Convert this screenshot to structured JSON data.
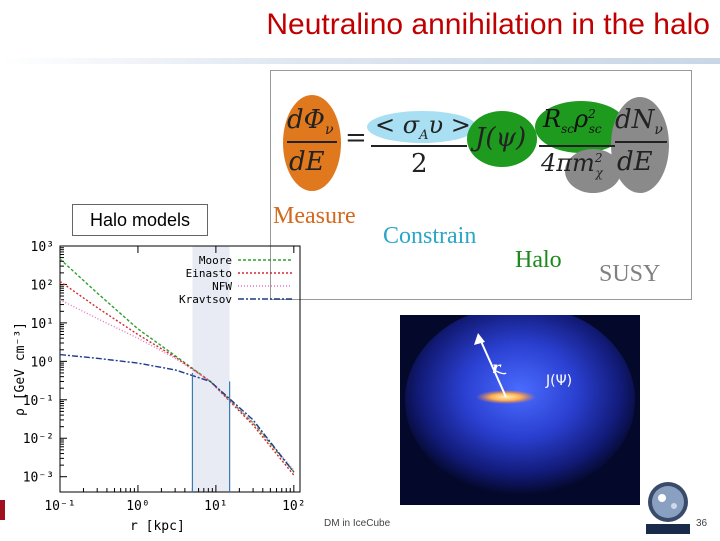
{
  "slide": {
    "title": "Neutralino annihilation in the halo",
    "footer": "DM in IceCube",
    "page_number": "36",
    "halo_models_label": "Halo models"
  },
  "formula": {
    "lhs_top": "dΦ",
    "lhs_top_sub": "ν",
    "lhs_bottom": "dE",
    "equals": "=",
    "sigma_top": "< σ",
    "sigma_sub": "A",
    "sigma_top_end": "υ >",
    "sigma_bottom": "2",
    "jpsi": "J(ψ)",
    "rsc_top": "R",
    "rsc_top_sub1": "sc",
    "rsc_top_rho": "ρ",
    "rsc_top_sub2": "sc",
    "rsc_top_sup": "2",
    "rsc_bottom": "4πm",
    "rsc_bottom_sup": "2",
    "rsc_bottom_sub": "χ",
    "dn_top": "dN",
    "dn_top_sub": "ν",
    "dn_bottom": "dE",
    "labels": {
      "measure": "Measure",
      "constrain": "Constrain",
      "halo": "Halo",
      "susy": "SUSY"
    },
    "colors": {
      "measure": "#d2691e",
      "constrain": "#2aa6c8",
      "halo": "#1a8a1a",
      "susy": "#808080"
    }
  },
  "halo_picture": {
    "r_label": "r",
    "j_label": "J(Ψ)"
  },
  "chart_data": {
    "type": "line",
    "xlabel": "r  [kpc]",
    "ylabel": "ρ  [GeV  cm⁻³]",
    "xscale": "log",
    "yscale": "log",
    "xlim": [
      0.1,
      120
    ],
    "ylim": [
      0.0004,
      1000
    ],
    "x_ticks": [
      "10⁻¹",
      "10⁰",
      "10¹",
      "10²"
    ],
    "y_ticks": [
      "10³",
      "10²",
      "10¹",
      "10⁰",
      "10⁻¹",
      "10⁻²",
      "10⁻³"
    ],
    "legend": "top-right",
    "vertical_markers": [
      {
        "x": 5,
        "y_top": 0.5
      },
      {
        "x": 15,
        "y_top": 0.3
      }
    ],
    "shaded_band": [
      5,
      15
    ],
    "series": [
      {
        "name": "Moore",
        "color": "#2ca02c",
        "x": [
          0.1,
          0.3,
          1,
          3,
          8.5,
          30,
          100
        ],
        "y": [
          460,
          60,
          7,
          1.4,
          0.3,
          0.025,
          0.00135
        ]
      },
      {
        "name": "Einasto",
        "color": "#d62728",
        "x": [
          0.1,
          0.3,
          1,
          3,
          8.5,
          30,
          100
        ],
        "y": [
          120,
          25,
          5,
          1.3,
          0.3,
          0.022,
          0.0011
        ]
      },
      {
        "name": "NFW",
        "color": "#e377c2",
        "x": [
          0.1,
          0.3,
          1,
          3,
          8.5,
          30,
          100
        ],
        "y": [
          40,
          13,
          4,
          1.2,
          0.3,
          0.025,
          0.0015
        ]
      },
      {
        "name": "Kravtsov",
        "color": "#1f3b8a",
        "x": [
          0.1,
          0.3,
          1,
          3,
          8.5,
          30,
          100
        ],
        "y": [
          1.5,
          1.2,
          0.9,
          0.6,
          0.3,
          0.03,
          0.0013
        ]
      }
    ]
  }
}
